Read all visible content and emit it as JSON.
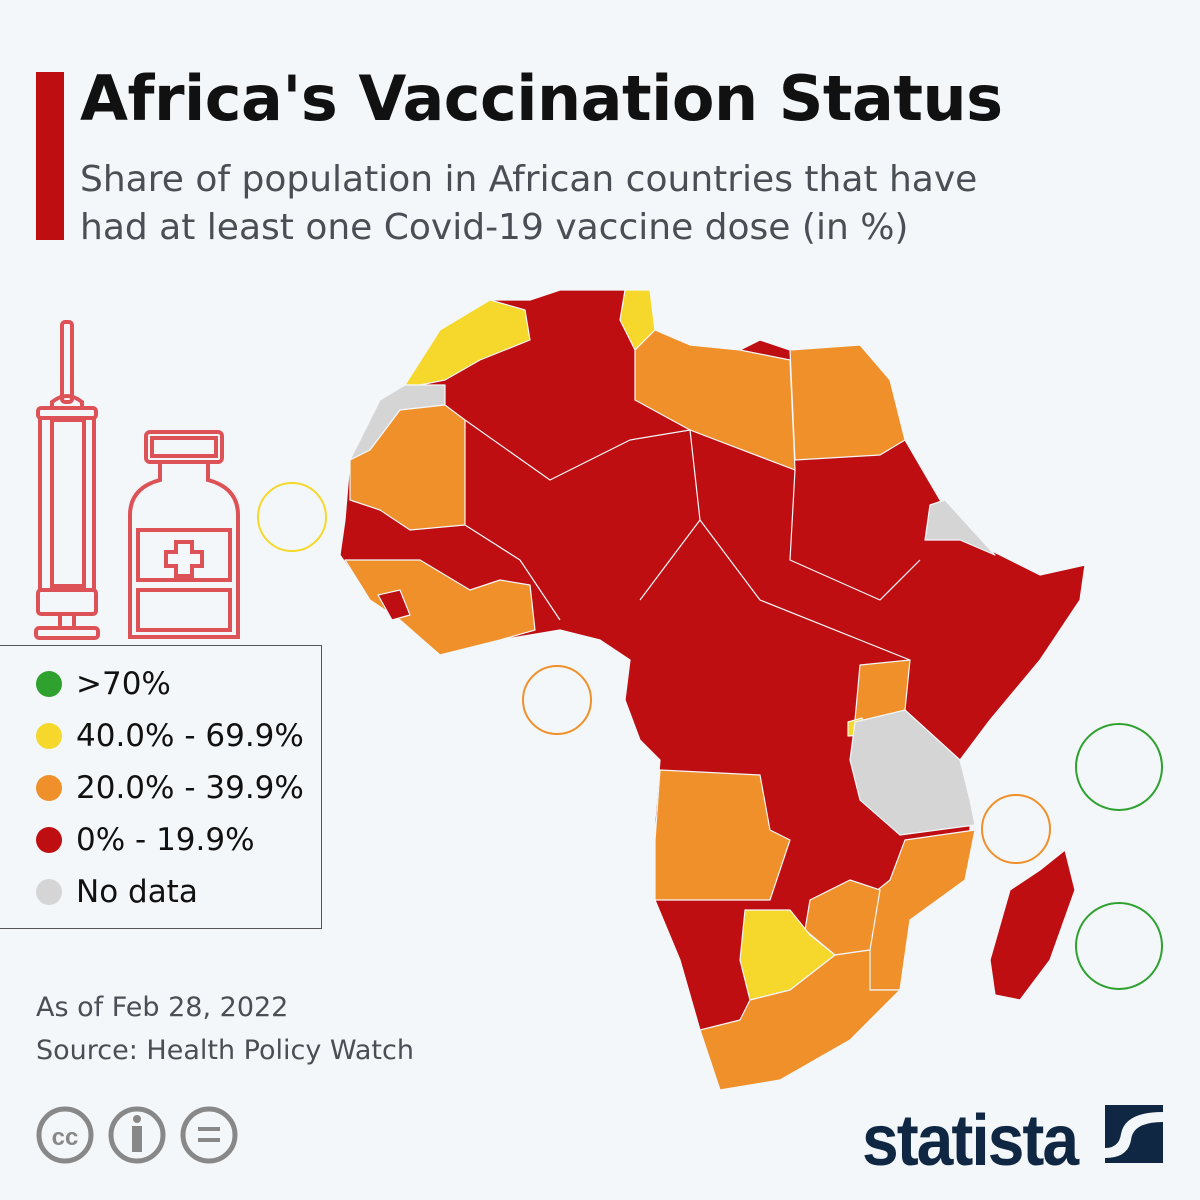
{
  "header": {
    "title": "Africa's Vaccination Status",
    "subtitle": "Share of population in African countries that have had at least one Covid-19 vaccine dose (in %)"
  },
  "legend": [
    {
      "label": ">70%",
      "color": "#2ea12e"
    },
    {
      "label": "40.0% - 69.9%",
      "color": "#f5d82b"
    },
    {
      "label": "20.0% - 39.9%",
      "color": "#f0902b"
    },
    {
      "label": "0% - 19.9%",
      "color": "#be0e12"
    },
    {
      "label": "No data",
      "color": "#d5d5d5"
    }
  ],
  "footer": {
    "date": "As of Feb 28, 2022",
    "source": "Source: Health Policy Watch",
    "logo": "statista",
    "license_icons": [
      "cc-icon",
      "attribution-icon",
      "no-derivatives-icon"
    ]
  },
  "map": {
    "icons": [
      "syringe-icon",
      "vaccine-vial-icon"
    ],
    "default_category": "0% - 19.9%"
  }
}
